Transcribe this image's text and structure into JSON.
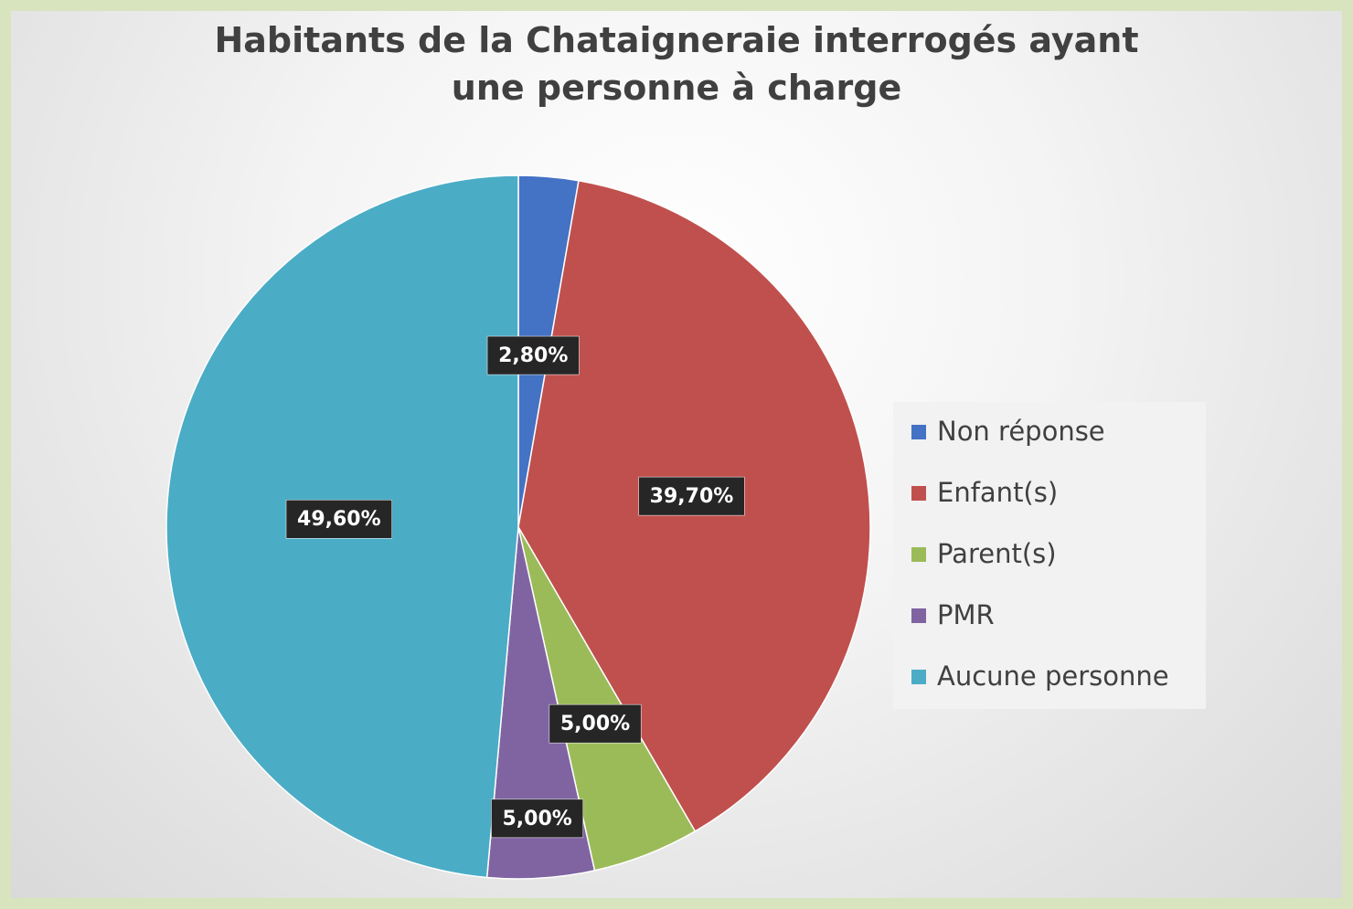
{
  "chart_data": {
    "type": "pie",
    "title": "Habitants de la Chataigneraie interrogés ayant une personne à charge",
    "categories": [
      "Non réponse",
      "Enfant(s)",
      "Parent(s)",
      "PMR",
      "Aucune personne"
    ],
    "values": [
      2.8,
      39.7,
      5.0,
      5.0,
      49.6
    ],
    "value_labels": [
      "2,80%",
      "39,70%",
      "5,00%",
      "5,00%",
      "49,60%"
    ],
    "colors": [
      "#4472c4",
      "#c0504d",
      "#9bbb59",
      "#8064a2",
      "#4bacc6"
    ],
    "legend": "right"
  }
}
